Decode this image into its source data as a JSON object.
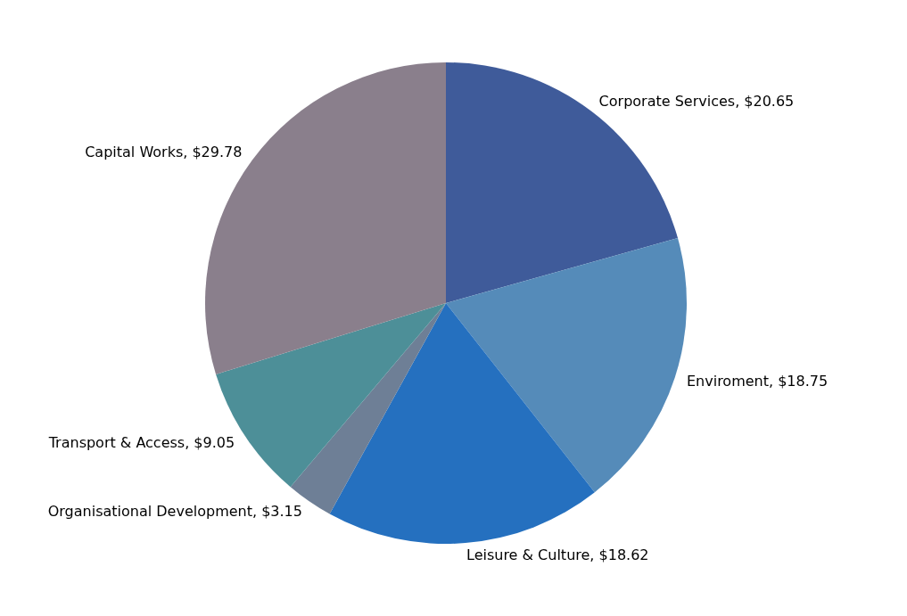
{
  "chart_data": {
    "type": "pie",
    "categories": [
      "Corporate Services",
      "Enviroment",
      "Leisure & Culture",
      "Organisational Development",
      "Transport & Access",
      "Capital Works"
    ],
    "values": [
      20.65,
      18.75,
      18.62,
      3.15,
      9.05,
      29.78
    ],
    "value_labels": [
      "$20.65",
      "$18.75",
      "$18.62",
      "$3.15",
      "$9.05",
      "$29.78"
    ],
    "colors": [
      "#3f5b9a",
      "#558bb9",
      "#2570bf",
      "#6e7f96",
      "#4d8f98",
      "#8a7f8c"
    ],
    "legend": false
  }
}
